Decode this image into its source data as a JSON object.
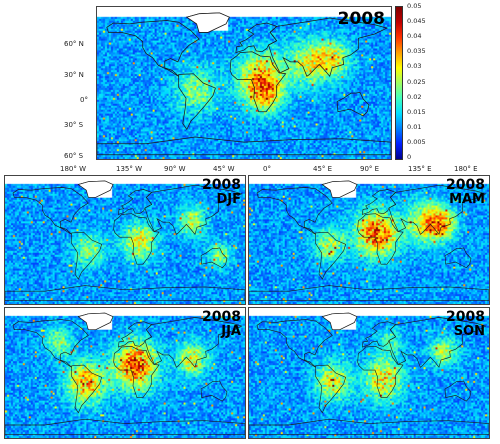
{
  "main_map": {
    "year": "2008"
  },
  "seasons": [
    {
      "year": "2008",
      "label": "DJF"
    },
    {
      "year": "2008",
      "label": "MAM"
    },
    {
      "year": "2008",
      "label": "JJA"
    },
    {
      "year": "2008",
      "label": "SON"
    }
  ],
  "lat_ticks": [
    "60° N",
    "30° N",
    "0°",
    "30° S",
    "60° S"
  ],
  "lon_ticks": [
    "180° W",
    "135° W",
    "90° W",
    "45° W",
    "0°",
    "45° E",
    "90° E",
    "135° E",
    "180° E"
  ],
  "colorbar": {
    "labels": [
      "0.05",
      "0.045",
      "0.04",
      "0.035",
      "0.03",
      "0.025",
      "0.02",
      "0.015",
      "0.01",
      "0.005",
      "0"
    ],
    "colors": [
      "#00008f",
      "#0020ff",
      "#0080ff",
      "#00dfff",
      "#40ffbf",
      "#a0ff60",
      "#ffff00",
      "#ff9f00",
      "#ff3000",
      "#c00000",
      "#800000"
    ]
  }
}
